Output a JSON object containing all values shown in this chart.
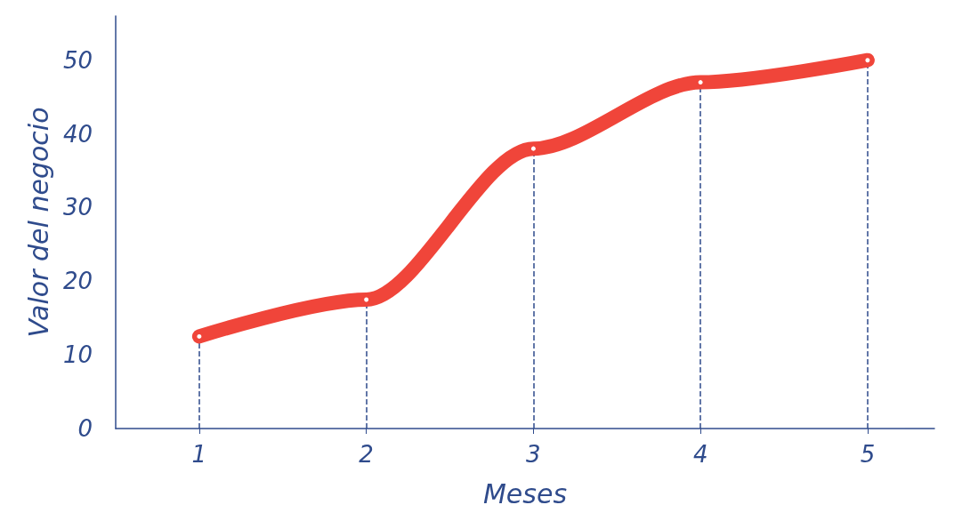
{
  "chart_data": {
    "type": "line",
    "xlabel": "Meses",
    "ylabel": "Valor del negocio",
    "x": [
      1,
      2,
      3,
      4,
      5
    ],
    "series": [
      {
        "color": "#f0453a",
        "values": [
          12.5,
          17.5,
          38,
          47,
          50
        ]
      }
    ],
    "xlim": [
      0.5,
      5.4
    ],
    "xticks": [
      1,
      2,
      3,
      4,
      5
    ],
    "ylim": [
      0,
      56
    ],
    "yticks": [
      0,
      10,
      20,
      30,
      40,
      50
    ],
    "grid": false,
    "marker": "circle",
    "line_style": "solid",
    "ref_lines": [
      {
        "axis": "x",
        "value": 1,
        "color": "#2f4b8c",
        "line_style": "dashed"
      },
      {
        "axis": "x",
        "value": 2,
        "color": "#2f4b8c",
        "line_style": "dashed"
      },
      {
        "axis": "x",
        "value": 3,
        "color": "#2f4b8c",
        "line_style": "dashed"
      },
      {
        "axis": "x",
        "value": 4,
        "color": "#2f4b8c",
        "line_style": "dashed"
      },
      {
        "axis": "x",
        "value": 5,
        "color": "#2f4b8c",
        "line_style": "dashed"
      }
    ]
  }
}
